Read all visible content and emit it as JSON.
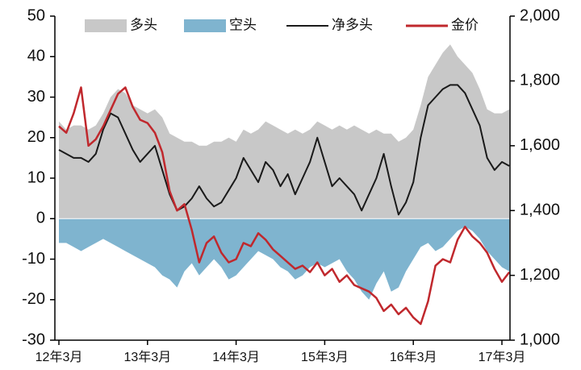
{
  "chart_data": {
    "type": "line",
    "legend": "top",
    "categories": [
      "12年3月",
      null,
      null,
      null,
      null,
      null,
      null,
      null,
      null,
      null,
      null,
      null,
      "13年3月",
      null,
      null,
      null,
      null,
      null,
      null,
      null,
      null,
      null,
      null,
      null,
      "14年3月",
      null,
      null,
      null,
      null,
      null,
      null,
      null,
      null,
      null,
      null,
      null,
      "15年3月",
      null,
      null,
      null,
      null,
      null,
      null,
      null,
      null,
      null,
      null,
      null,
      "16年3月",
      null,
      null,
      null,
      null,
      null,
      null,
      null,
      null,
      null,
      null,
      null,
      "17年3月",
      null
    ],
    "ylim": [
      -30,
      50
    ],
    "yticks": [
      -30,
      -20,
      -10,
      0,
      10,
      20,
      30,
      40,
      50
    ],
    "y2lim": [
      1000,
      2000
    ],
    "y2ticks": [
      {
        "value": 1000,
        "label": "1,000"
      },
      {
        "value": 1200,
        "label": "1,200"
      },
      {
        "value": 1400,
        "label": "1,400"
      },
      {
        "value": 1600,
        "label": "1,600"
      },
      {
        "value": 1800,
        "label": "1,800"
      },
      {
        "value": 2000,
        "label": "2,000"
      }
    ],
    "series": [
      {
        "name": "多头",
        "type": "area",
        "color": "#c8c8c8",
        "values": [
          24,
          22,
          23,
          23,
          22,
          23,
          26,
          30,
          32,
          31,
          28,
          27,
          26,
          27,
          25,
          21,
          20,
          19,
          19,
          18,
          18,
          19,
          19,
          20,
          19,
          22,
          21,
          22,
          24,
          23,
          22,
          21,
          22,
          21,
          22,
          24,
          23,
          22,
          23,
          22,
          23,
          22,
          21,
          22,
          21,
          21,
          19,
          20,
          22,
          28,
          35,
          38,
          41,
          43,
          40,
          38,
          36,
          32,
          27,
          26,
          26,
          27
        ]
      },
      {
        "name": "空头",
        "type": "area",
        "color": "#7fb4cf",
        "values": [
          -6,
          -6,
          -7,
          -8,
          -7,
          -6,
          -5,
          -6,
          -7,
          -8,
          -9,
          -10,
          -11,
          -12,
          -14,
          -15,
          -17,
          -13,
          -11,
          -14,
          -12,
          -10,
          -12,
          -15,
          -14,
          -12,
          -10,
          -8,
          -9,
          -10,
          -12,
          -13,
          -15,
          -14,
          -12,
          -11,
          -12,
          -11,
          -10,
          -13,
          -15,
          -18,
          -20,
          -16,
          -13,
          -18,
          -17,
          -13,
          -10,
          -7,
          -6,
          -8,
          -7,
          -5,
          -3,
          -2,
          -3,
          -5,
          -8,
          -10,
          -12,
          -13
        ]
      },
      {
        "name": "净多头",
        "type": "line",
        "color": "#1a1a1a",
        "values": [
          17,
          16,
          15,
          15,
          14,
          16,
          22,
          26,
          25,
          21,
          17,
          14,
          16,
          18,
          12,
          6,
          2,
          3,
          5,
          8,
          5,
          3,
          4,
          7,
          10,
          15,
          12,
          9,
          14,
          12,
          8,
          11,
          6,
          10,
          14,
          20,
          14,
          8,
          10,
          8,
          6,
          2,
          6,
          10,
          16,
          8,
          1,
          4,
          9,
          20,
          28,
          30,
          32,
          33,
          33,
          31,
          27,
          23,
          15,
          12,
          14,
          13
        ]
      },
      {
        "name": "金价",
        "type": "line",
        "axis": "y2",
        "color": "#c0282d",
        "values": [
          1660,
          1640,
          1700,
          1780,
          1600,
          1620,
          1660,
          1710,
          1760,
          1780,
          1720,
          1680,
          1670,
          1640,
          1580,
          1460,
          1400,
          1420,
          1340,
          1240,
          1300,
          1320,
          1270,
          1240,
          1250,
          1300,
          1290,
          1330,
          1310,
          1280,
          1260,
          1240,
          1220,
          1230,
          1210,
          1240,
          1200,
          1220,
          1180,
          1200,
          1170,
          1160,
          1150,
          1130,
          1090,
          1110,
          1080,
          1100,
          1070,
          1050,
          1120,
          1230,
          1250,
          1240,
          1310,
          1350,
          1320,
          1300,
          1270,
          1220,
          1180,
          1210
        ]
      }
    ]
  }
}
